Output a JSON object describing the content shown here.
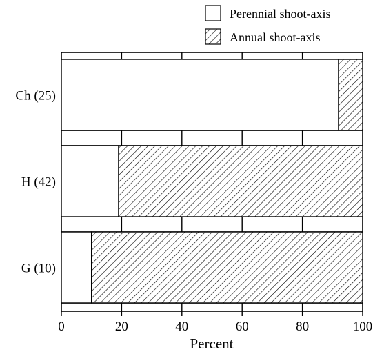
{
  "chart_data": {
    "type": "bar",
    "orientation": "horizontal",
    "stacked": true,
    "categories": [
      "Ch (25)",
      "H (42)",
      "G (10)"
    ],
    "series": [
      {
        "name": "Perennial shoot-axis",
        "values": [
          92,
          19,
          10
        ]
      },
      {
        "name": "Annual shoot-axis",
        "values": [
          8,
          81,
          90
        ]
      }
    ],
    "xlabel": "Percent",
    "ylabel": "",
    "xlim": [
      0,
      100
    ],
    "xticks": [
      "0",
      "20",
      "40",
      "60",
      "80",
      "100"
    ],
    "legend": {
      "position": "top-right",
      "entries": [
        "Perennial shoot-axis",
        "Annual shoot-axis"
      ]
    },
    "grid": false
  },
  "colors": {
    "perennial_fill": "#ffffff",
    "annual_fill": "hatched",
    "stroke": "#000000"
  }
}
